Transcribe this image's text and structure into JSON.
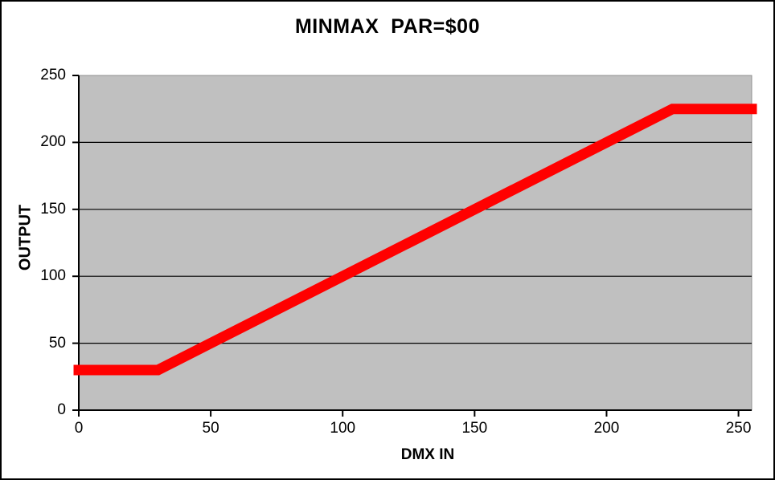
{
  "chart_data": {
    "type": "line",
    "title": "MINMAX  PAR=$00",
    "xlabel": "DMX IN",
    "ylabel": "OUTPUT",
    "xlim": [
      0,
      255
    ],
    "ylim": [
      0,
      250
    ],
    "x_ticks": [
      0,
      50,
      100,
      150,
      200,
      250
    ],
    "y_ticks": [
      0,
      50,
      100,
      150,
      200,
      250
    ],
    "grid": "horizontal",
    "legend": "none",
    "colors": {
      "plot_bg": "#C0C0C0",
      "plot_border": "#909090",
      "grid": "#000000",
      "axis": "#000000",
      "line": "#FF0000",
      "text": "#000000",
      "page_border": "#000000",
      "page_bg": "#FFFFFF"
    },
    "series": [
      {
        "color": "#FF0000",
        "points": [
          [
            0,
            30
          ],
          [
            30,
            30
          ],
          [
            225,
            225
          ],
          [
            255,
            225
          ]
        ]
      }
    ]
  }
}
